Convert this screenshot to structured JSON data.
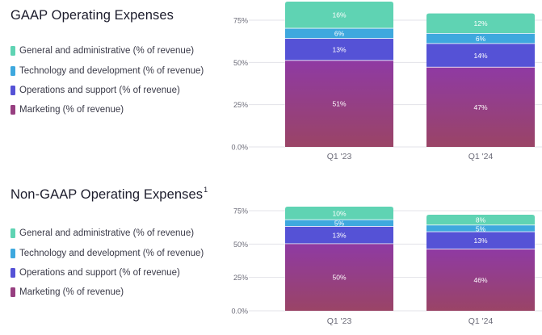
{
  "chart_data": [
    {
      "type": "bar",
      "stacked": true,
      "title": "GAAP Operating Expenses",
      "footnote": "",
      "categories": [
        "Q1 '23",
        "Q1 '24"
      ],
      "y_ticks": [
        "0.0%",
        "25%",
        "50%",
        "75%"
      ],
      "ylim": [
        0,
        87
      ],
      "grid": true,
      "legend_position": "left",
      "series": [
        {
          "name": "Marketing (% of revenue)",
          "values": [
            51,
            47
          ],
          "color_top": "#8f3aa3",
          "color_bottom": "#9a4466"
        },
        {
          "name": "Operations and support (% of revenue)",
          "values": [
            13,
            14
          ],
          "color": "#5552d6"
        },
        {
          "name": "Technology and development (% of revenue)",
          "values": [
            6,
            6
          ],
          "color": "#3ea8de"
        },
        {
          "name": "General and administrative (% of revenue)",
          "values": [
            16,
            12
          ],
          "color": "#5fd3b3"
        }
      ],
      "data_labels": [
        [
          "51%",
          "13%",
          "6%",
          "16%"
        ],
        [
          "47%",
          "14%",
          "6%",
          "12%"
        ]
      ]
    },
    {
      "type": "bar",
      "stacked": true,
      "title": "Non-GAAP Operating Expenses",
      "footnote": "1",
      "categories": [
        "Q1 '23",
        "Q1 '24"
      ],
      "y_ticks": [
        "0.0%",
        "25%",
        "50%",
        "75%"
      ],
      "ylim": [
        0,
        78
      ],
      "grid": true,
      "legend_position": "left",
      "series": [
        {
          "name": "Marketing (% of revenue)",
          "values": [
            50,
            46
          ],
          "color_top": "#8f3aa3",
          "color_bottom": "#9a4466"
        },
        {
          "name": "Operations and support (% of revenue)",
          "values": [
            13,
            13
          ],
          "color": "#5552d6"
        },
        {
          "name": "Technology and development (% of revenue)",
          "values": [
            5,
            5
          ],
          "color": "#3ea8de"
        },
        {
          "name": "General and administrative (% of revenue)",
          "values": [
            10,
            8
          ],
          "color": "#5fd3b3"
        }
      ],
      "data_labels": [
        [
          "50%",
          "13%",
          "5%",
          "10%"
        ],
        [
          "46%",
          "13%",
          "5%",
          "8%"
        ]
      ]
    }
  ],
  "legend": [
    {
      "label": "General and administrative (% of revenue)",
      "color": "#5fd3b3"
    },
    {
      "label": "Technology and development (% of revenue)",
      "color": "#3ea8de"
    },
    {
      "label": "Operations and support (% of revenue)",
      "color": "#5552d6"
    },
    {
      "label": "Marketing (% of revenue)",
      "color": "#973f80"
    }
  ],
  "colors": {
    "text": "#1c1c2c",
    "axis_text": "#6b6b78",
    "grid": "#e3e3e8",
    "bar_label": "#ffffff"
  }
}
